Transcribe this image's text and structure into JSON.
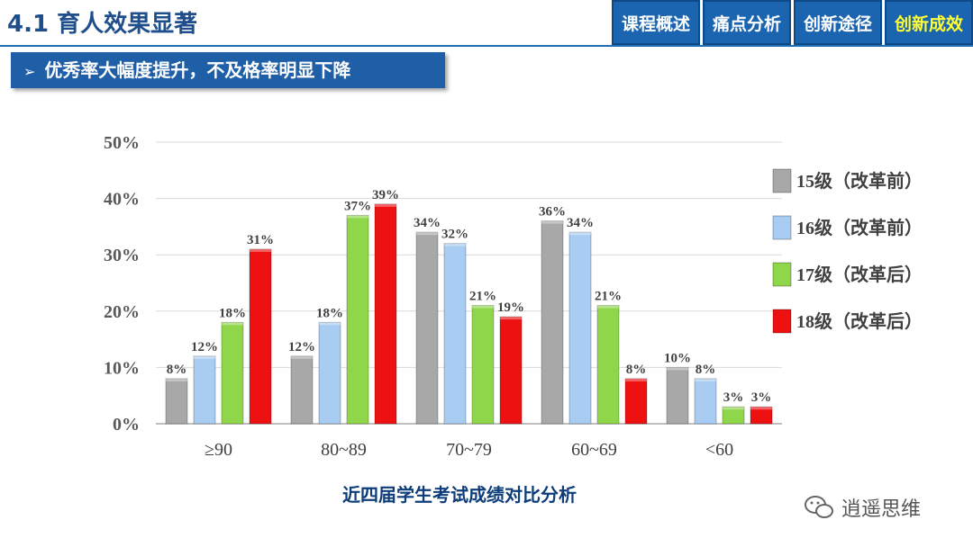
{
  "header": {
    "title": "4.1 育人效果显著",
    "tabs": [
      {
        "label": "课程概述",
        "active": false
      },
      {
        "label": "痛点分析",
        "active": false
      },
      {
        "label": "创新途径",
        "active": false
      },
      {
        "label": "创新成效",
        "active": true
      }
    ]
  },
  "subtitle": {
    "arrow": "➢",
    "text": "优秀率大幅度提升，不及格率明显下降"
  },
  "caption": "近四届学生考试成绩对比分析",
  "watermark": {
    "text": "逍遥思维",
    "icon": "wechat-icon"
  },
  "colors": {
    "header_blue": "#1a64b0",
    "active_tab_text": "#ffff33",
    "series": [
      "#a8a8a8",
      "#a9cdf2",
      "#8fd64a",
      "#ee1111"
    ]
  },
  "chart_data": {
    "type": "bar",
    "categories": [
      "≥90",
      "80~89",
      "70~79",
      "60~69",
      "<60"
    ],
    "series": [
      {
        "name": "15级（改革前）",
        "values": [
          8,
          12,
          34,
          36,
          10
        ],
        "color": "#a8a8a8"
      },
      {
        "name": "16级（改革前）",
        "values": [
          12,
          18,
          32,
          34,
          8
        ],
        "color": "#a9cdf2"
      },
      {
        "name": "17级（改革后）",
        "values": [
          18,
          37,
          21,
          21,
          3
        ],
        "color": "#8fd64a"
      },
      {
        "name": "18级（改革后）",
        "values": [
          31,
          39,
          19,
          8,
          3
        ],
        "color": "#ee1111"
      }
    ],
    "ylim": [
      0,
      50
    ],
    "yticks": [
      "0%",
      "10%",
      "20%",
      "30%",
      "40%",
      "50%"
    ],
    "value_suffix": "%",
    "grid": true,
    "legend": "right"
  }
}
